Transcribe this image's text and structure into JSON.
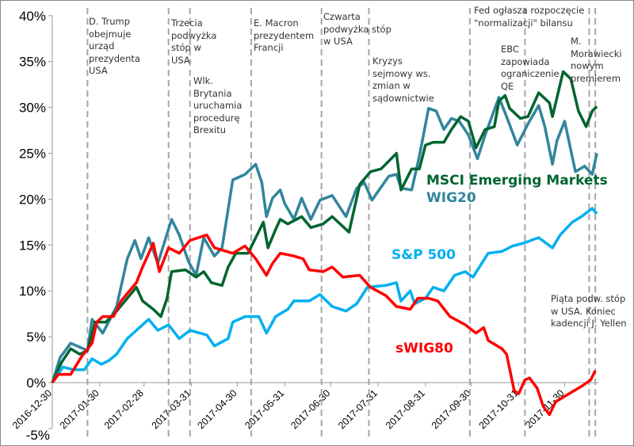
{
  "chart_data": {
    "type": "line",
    "x_unit": "days since 2016-12-30",
    "x_tick_labels": [
      "2016-12-30",
      "2017-01-30",
      "2017-02-28",
      "2017-03-31",
      "2017-04-30",
      "2017-05-31",
      "2017-06-30",
      "2017-07-31",
      "2017-08-31",
      "2017-09-30",
      "2017-10-31",
      "2017-11-30"
    ],
    "x_tick_days": [
      0,
      31,
      60,
      91,
      121,
      152,
      182,
      213,
      244,
      274,
      305,
      335
    ],
    "xlim": [
      0,
      357
    ],
    "y_tick_labels": [
      "40%",
      "35%",
      "30%",
      "25%",
      "20%",
      "15%",
      "10%",
      "5%",
      "0%",
      "-5%"
    ],
    "y_ticks": [
      40,
      35,
      30,
      25,
      20,
      15,
      10,
      5,
      0,
      -5
    ],
    "ylim": [
      -5,
      40
    ],
    "ylabel": "",
    "xlabel": "",
    "title": "",
    "series": [
      {
        "name": "MSCI Emerging Markets",
        "color": "#00642F",
        "x": [
          0,
          6,
          12,
          18,
          23,
          28,
          35,
          42,
          49,
          55,
          59,
          66,
          71,
          75,
          78,
          87,
          94,
          99,
          104,
          111,
          115,
          120,
          128,
          133,
          138,
          141,
          146,
          149,
          154,
          163,
          169,
          177,
          183,
          194,
          201,
          208,
          215,
          225,
          228,
          235,
          240,
          244,
          249,
          256,
          261,
          267,
          272,
          277,
          283,
          289,
          292,
          296,
          299,
          306,
          311,
          318,
          325,
          327,
          334,
          339,
          344,
          349,
          353,
          356
        ],
        "y": [
          0,
          2.2,
          3.7,
          3.1,
          3.5,
          6.6,
          6.6,
          7.8,
          9.2,
          10.4,
          8.9,
          8.0,
          7.2,
          9.2,
          12.1,
          12.3,
          11.5,
          12.1,
          10.9,
          10.6,
          12.6,
          14.1,
          14.1,
          15.8,
          17.5,
          14.7,
          16.7,
          17.8,
          17.3,
          18.1,
          16.9,
          17.3,
          18.1,
          16.4,
          21.6,
          23.0,
          23.3,
          25.0,
          21.0,
          23.3,
          23.3,
          25.9,
          26.2,
          26.2,
          27.6,
          29.0,
          28.5,
          25.6,
          27.6,
          27.9,
          30.7,
          31.3,
          29.9,
          28.8,
          29.0,
          31.6,
          30.5,
          29.0,
          33.9,
          33.1,
          29.6,
          27.9,
          29.6,
          30.1
        ]
      },
      {
        "name": "WIG20",
        "color": "#31859C",
        "x": [
          0,
          5,
          12,
          23,
          26,
          33,
          42,
          49,
          54,
          58,
          63,
          69,
          78,
          83,
          89,
          94,
          99,
          106,
          111,
          118,
          126,
          133,
          137,
          140,
          144,
          149,
          152,
          158,
          163,
          169,
          175,
          183,
          192,
          199,
          204,
          209,
          220,
          225,
          228,
          235,
          240,
          246,
          251,
          256,
          261,
          266,
          272,
          278,
          283,
          292,
          297,
          304,
          311,
          318,
          322,
          327,
          330,
          335,
          342,
          348,
          353,
          356
        ],
        "y": [
          0,
          2.7,
          4.3,
          3.5,
          6.9,
          5.4,
          8.3,
          13.5,
          15.5,
          13.5,
          15.8,
          13.0,
          17.8,
          16.1,
          13.2,
          11.7,
          15.8,
          13.8,
          14.7,
          22.1,
          22.7,
          23.8,
          21.8,
          18.1,
          20.1,
          21.0,
          19.5,
          17.8,
          20.1,
          17.8,
          19.9,
          20.4,
          18.1,
          21.2,
          21.8,
          19.9,
          22.5,
          22.7,
          21.2,
          21.0,
          24.7,
          29.9,
          29.6,
          27.6,
          28.8,
          28.5,
          27.0,
          24.4,
          27.0,
          31.1,
          29.0,
          25.9,
          28.2,
          30.2,
          27.9,
          23.8,
          26.4,
          28.5,
          23.0,
          23.6,
          22.7,
          25.0
        ]
      },
      {
        "name": "S&P 500",
        "color": "#00B0F0",
        "x": [
          0,
          7,
          14,
          21,
          26,
          32,
          37,
          42,
          49,
          55,
          63,
          69,
          76,
          83,
          90,
          101,
          106,
          115,
          118,
          126,
          135,
          140,
          146,
          154,
          158,
          168,
          175,
          183,
          192,
          199,
          206,
          218,
          225,
          228,
          234,
          237,
          244,
          249,
          256,
          263,
          270,
          275,
          285,
          294,
          301,
          308,
          318,
          327,
          332,
          340,
          346,
          353,
          356
        ],
        "y": [
          0,
          1.7,
          1.4,
          1.4,
          2.6,
          2.0,
          2.4,
          3.1,
          4.8,
          5.7,
          6.9,
          5.7,
          6.3,
          4.8,
          5.7,
          5.2,
          4.0,
          4.8,
          6.6,
          7.2,
          7.2,
          5.4,
          7.2,
          8.0,
          8.9,
          8.9,
          9.6,
          8.3,
          7.8,
          8.6,
          10.4,
          10.6,
          10.9,
          8.9,
          10.0,
          8.6,
          9.2,
          10.4,
          10.0,
          11.7,
          12.1,
          11.5,
          14.1,
          14.3,
          14.9,
          15.2,
          15.8,
          14.7,
          16.1,
          17.5,
          18.1,
          19.0,
          18.4
        ]
      },
      {
        "name": "sWIG80",
        "color": "#FF0000",
        "x": [
          0,
          4,
          12,
          19,
          26,
          29,
          33,
          40,
          45,
          55,
          59,
          66,
          70,
          76,
          83,
          90,
          101,
          106,
          118,
          126,
          133,
          140,
          144,
          149,
          158,
          164,
          168,
          177,
          183,
          190,
          201,
          208,
          218,
          225,
          234,
          239,
          246,
          252,
          260,
          270,
          277,
          282,
          285,
          294,
          297,
          302,
          305,
          309,
          312,
          317,
          321,
          325,
          329,
          341,
          347,
          352,
          355
        ],
        "y": [
          0,
          0.9,
          0.9,
          2.8,
          4.3,
          6.6,
          7.2,
          7.2,
          8.9,
          10.9,
          12.6,
          15.2,
          12.1,
          14.7,
          14.1,
          15.5,
          16.1,
          14.7,
          14.1,
          14.9,
          13.5,
          11.7,
          13.0,
          14.1,
          13.8,
          13.5,
          12.3,
          12.1,
          12.6,
          11.5,
          11.7,
          10.4,
          9.5,
          8.3,
          8.0,
          9.2,
          9.2,
          8.9,
          7.2,
          6.3,
          5.4,
          6.0,
          4.6,
          3.7,
          3.1,
          -0.9,
          -1.2,
          0.3,
          0.5,
          -0.6,
          -2.6,
          -3.5,
          -2.1,
          -0.9,
          -0.3,
          0.3,
          1.3
        ]
      }
    ],
    "events": [
      {
        "day": 23,
        "label": "D. Trump\nobejmuje\nurząd\nprezydenta\nUSA"
      },
      {
        "day": 76,
        "label": "Trzecia\npodwyżka\nstóp w\nUSA"
      },
      {
        "day": 90,
        "label": "Wlk.\nBrytania\nuruchamia\nprocedurę\nBrexitu"
      },
      {
        "day": 130,
        "label": "E. Macron\nprezydentem\nFrancji"
      },
      {
        "day": 176,
        "label": "Czwarta\npodwyżka stóp\nw USA"
      },
      {
        "day": 207,
        "label": "Kryzys\nsejmowy ws.\nzmian w\nsądownictwie"
      },
      {
        "day": 273,
        "label": "Fed ogłasza rozpoczęcie\n\"normalizacji\" bilansu"
      },
      {
        "day": 309,
        "label": "EBC\nzapowiada\nograniczenie\nQE"
      },
      {
        "day": 351,
        "label": "M.\nMorawiecki\nnowym\npremierem"
      },
      {
        "day": 355,
        "label": "Piąta podw. stóp\nw USA. Koniec\nkadencji J. Yellen"
      }
    ],
    "grid": false,
    "legend": "inline labels next to lines"
  }
}
